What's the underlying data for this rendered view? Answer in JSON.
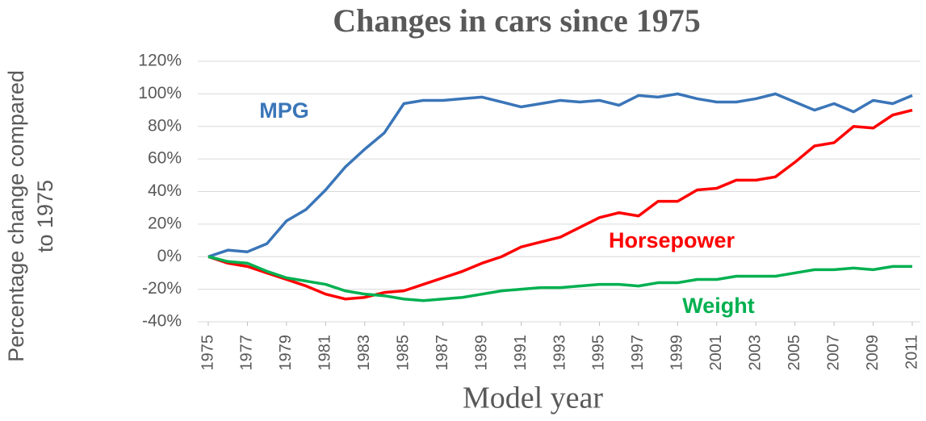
{
  "chart_data": {
    "type": "line",
    "title": "Changes in cars since 1975",
    "x_label": "Model year",
    "y_label": [
      "Percentage change compared",
      "to 1975"
    ],
    "x": [
      1975,
      1976,
      1977,
      1978,
      1979,
      1980,
      1981,
      1982,
      1983,
      1984,
      1985,
      1986,
      1987,
      1988,
      1989,
      1990,
      1991,
      1992,
      1993,
      1994,
      1995,
      1996,
      1997,
      1998,
      1999,
      2000,
      2001,
      2002,
      2003,
      2004,
      2005,
      2006,
      2007,
      2008,
      2009,
      2010,
      2011
    ],
    "xlim": [
      1975,
      2011
    ],
    "xticks": [
      1975,
      1977,
      1979,
      1981,
      1983,
      1985,
      1987,
      1989,
      1991,
      1993,
      1995,
      1997,
      1999,
      2001,
      2003,
      2005,
      2007,
      2009,
      2011
    ],
    "ylim": [
      -40,
      120
    ],
    "yticks": [
      {
        "value": -40,
        "label": "-40%"
      },
      {
        "value": -20,
        "label": "-20%"
      },
      {
        "value": 0,
        "label": "0%"
      },
      {
        "value": 20,
        "label": "20%"
      },
      {
        "value": 40,
        "label": "40%"
      },
      {
        "value": 60,
        "label": "60%"
      },
      {
        "value": 80,
        "label": "80%"
      },
      {
        "value": 100,
        "label": "100%"
      },
      {
        "value": 120,
        "label": "120%"
      }
    ],
    "grid": true,
    "series": [
      {
        "name": "MPG",
        "color": "#3a75b8",
        "values": [
          0,
          4,
          3,
          8,
          22,
          29,
          41,
          55,
          66,
          76,
          94,
          96,
          96,
          97,
          98,
          95,
          92,
          94,
          96,
          95,
          96,
          93,
          99,
          98,
          100,
          97,
          95,
          95,
          97,
          100,
          95,
          90,
          94,
          89,
          96,
          94,
          99
        ]
      },
      {
        "name": "Horsepower",
        "color": "#ff0000",
        "values": [
          0,
          -4,
          -6,
          -10,
          -14,
          -18,
          -23,
          -26,
          -25,
          -22,
          -21,
          -17,
          -13,
          -9,
          -4,
          0,
          6,
          9,
          12,
          18,
          24,
          27,
          25,
          34,
          34,
          41,
          42,
          47,
          47,
          49,
          58,
          68,
          70,
          80,
          79,
          87,
          90
        ]
      },
      {
        "name": "Weight",
        "color": "#00b050",
        "values": [
          0,
          -3,
          -4,
          -9,
          -13,
          -15,
          -17,
          -21,
          -23,
          -24,
          -26,
          -27,
          -26,
          -25,
          -23,
          -21,
          -20,
          -19,
          -19,
          -18,
          -17,
          -17,
          -18,
          -16,
          -16,
          -14,
          -14,
          -12,
          -12,
          -12,
          -10,
          -8,
          -8,
          -7,
          -8,
          -6,
          -6
        ]
      }
    ]
  }
}
